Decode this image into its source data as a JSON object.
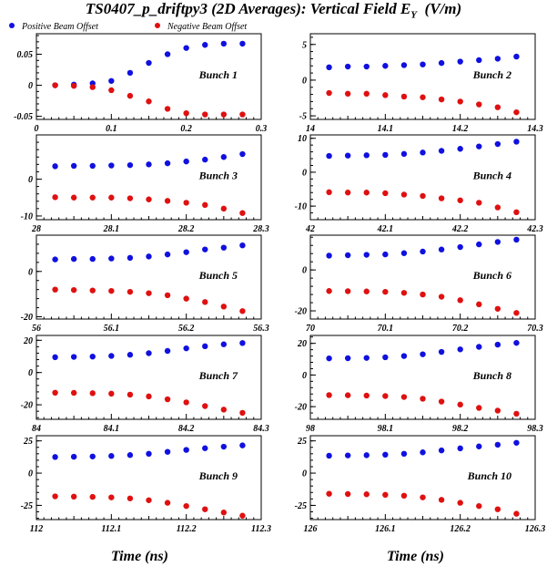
{
  "figure": {
    "title_main": "TS0407_p_driftpy3 (2D Averages): Vertical Field E",
    "title_sub": "Y",
    "title_unit": "(V/m)",
    "x_axis_title": "Time (ns)",
    "legend": [
      {
        "label": "Positive Beam Offset",
        "color": "#1010e0"
      },
      {
        "label": "Negative Beam Offset",
        "color": "#e01010"
      }
    ]
  },
  "chart_data": [
    {
      "type": "scatter",
      "annotation": "Bunch 1",
      "xlim": [
        0,
        0.3
      ],
      "ylim": [
        -0.055,
        0.083
      ],
      "xticks": [
        "0",
        "0.1",
        "0.2",
        "0.3"
      ],
      "yticks": [
        "-0.05",
        "0",
        "0.05"
      ],
      "x": [
        0.025,
        0.05,
        0.075,
        0.1,
        0.125,
        0.15,
        0.175,
        0.2,
        0.225,
        0.25,
        0.275
      ],
      "series": [
        {
          "name": "Positive Beam Offset",
          "values": [
            0.0,
            0.001,
            0.003,
            0.007,
            0.02,
            0.036,
            0.05,
            0.06,
            0.065,
            0.067,
            0.067
          ]
        },
        {
          "name": "Negative Beam Offset",
          "values": [
            0.0,
            -0.001,
            -0.003,
            -0.008,
            -0.017,
            -0.026,
            -0.038,
            -0.045,
            -0.047,
            -0.047,
            -0.047
          ]
        }
      ]
    },
    {
      "type": "scatter",
      "annotation": "Bunch 2",
      "xlim": [
        14,
        14.3
      ],
      "ylim": [
        -5.5,
        6.5
      ],
      "xticks": [
        "14",
        "14.1",
        "14.2",
        "14.3"
      ],
      "yticks": [
        "-5",
        "0",
        "5"
      ],
      "x": [
        14.025,
        14.05,
        14.075,
        14.1,
        14.125,
        14.15,
        14.175,
        14.2,
        14.225,
        14.25,
        14.275
      ],
      "series": [
        {
          "name": "Positive Beam Offset",
          "values": [
            1.8,
            1.9,
            1.9,
            2.0,
            2.1,
            2.2,
            2.4,
            2.6,
            2.8,
            3.0,
            3.3
          ]
        },
        {
          "name": "Negative Beam Offset",
          "values": [
            -1.8,
            -1.9,
            -1.9,
            -2.1,
            -2.3,
            -2.4,
            -2.7,
            -3.0,
            -3.4,
            -3.8,
            -4.5
          ]
        }
      ]
    },
    {
      "type": "scatter",
      "annotation": "Bunch 3",
      "xlim": [
        28,
        28.3
      ],
      "ylim": [
        -11,
        12
      ],
      "xticks": [
        "28",
        "28.1",
        "28.2",
        "28.3"
      ],
      "yticks": [
        "-10",
        "0"
      ],
      "x": [
        28.025,
        28.05,
        28.075,
        28.1,
        28.125,
        28.15,
        28.175,
        28.2,
        28.225,
        28.25,
        28.275
      ],
      "series": [
        {
          "name": "Positive Beam Offset",
          "values": [
            3.5,
            3.6,
            3.6,
            3.7,
            3.8,
            4.0,
            4.3,
            4.8,
            5.3,
            6.0,
            6.8
          ]
        },
        {
          "name": "Negative Beam Offset",
          "values": [
            -4.9,
            -5.0,
            -5.0,
            -5.0,
            -5.2,
            -5.5,
            -5.9,
            -6.4,
            -7.0,
            -8.0,
            -9.2
          ]
        }
      ]
    },
    {
      "type": "scatter",
      "annotation": "Bunch 4",
      "xlim": [
        42,
        42.3
      ],
      "ylim": [
        -14,
        11
      ],
      "xticks": [
        "42",
        "42.1",
        "42.2",
        "42.3"
      ],
      "yticks": [
        "-10",
        "0",
        "10"
      ],
      "x": [
        42.025,
        42.05,
        42.075,
        42.1,
        42.125,
        42.15,
        42.175,
        42.2,
        42.225,
        42.25,
        42.275
      ],
      "series": [
        {
          "name": "Positive Beam Offset",
          "values": [
            4.8,
            4.9,
            5.0,
            5.1,
            5.4,
            5.8,
            6.3,
            6.9,
            7.6,
            8.3,
            9.0
          ]
        },
        {
          "name": "Negative Beam Offset",
          "values": [
            -5.9,
            -6.0,
            -6.0,
            -6.2,
            -6.6,
            -7.0,
            -7.7,
            -8.3,
            -9.0,
            -10.4,
            -11.8
          ]
        }
      ]
    },
    {
      "type": "scatter",
      "annotation": "Bunch 5",
      "xlim": [
        56,
        56.3
      ],
      "ylim": [
        -21,
        16
      ],
      "xticks": [
        "56",
        "56.1",
        "56.2",
        "56.3"
      ],
      "yticks": [
        "-20",
        "0"
      ],
      "x": [
        56.025,
        56.05,
        56.075,
        56.1,
        56.125,
        56.15,
        56.175,
        56.2,
        56.225,
        56.25,
        56.275
      ],
      "series": [
        {
          "name": "Positive Beam Offset",
          "values": [
            5.3,
            5.5,
            5.5,
            5.7,
            6.0,
            6.6,
            7.5,
            8.5,
            9.7,
            10.5,
            11.5
          ]
        },
        {
          "name": "Negative Beam Offset",
          "values": [
            -8.0,
            -8.2,
            -8.4,
            -8.6,
            -9.0,
            -9.6,
            -10.5,
            -12.0,
            -13.5,
            -15.5,
            -17.5
          ]
        }
      ]
    },
    {
      "type": "scatter",
      "annotation": "Bunch 6",
      "xlim": [
        70,
        70.3
      ],
      "ylim": [
        -24,
        17
      ],
      "xticks": [
        "70",
        "70.1",
        "70.2",
        "70.3"
      ],
      "yticks": [
        "-20",
        "0"
      ],
      "x": [
        70.025,
        70.05,
        70.075,
        70.1,
        70.125,
        70.15,
        70.175,
        70.2,
        70.225,
        70.25,
        70.275
      ],
      "series": [
        {
          "name": "Positive Beam Offset",
          "values": [
            7.0,
            7.2,
            7.4,
            7.6,
            8.2,
            9.0,
            10.0,
            11.2,
            12.5,
            13.7,
            14.8
          ]
        },
        {
          "name": "Negative Beam Offset",
          "values": [
            -10.3,
            -10.4,
            -10.5,
            -10.7,
            -11.2,
            -12.0,
            -13.1,
            -14.8,
            -16.8,
            -19.0,
            -21.0
          ]
        }
      ]
    },
    {
      "type": "scatter",
      "annotation": "Bunch 7",
      "xlim": [
        84,
        84.3
      ],
      "ylim": [
        -29,
        23
      ],
      "xticks": [
        "84",
        "84.1",
        "84.2",
        "84.3"
      ],
      "yticks": [
        "-20",
        "0",
        "20"
      ],
      "x": [
        84.025,
        84.05,
        84.075,
        84.1,
        84.125,
        84.15,
        84.175,
        84.2,
        84.225,
        84.25,
        84.275
      ],
      "series": [
        {
          "name": "Positive Beam Offset",
          "values": [
            9.5,
            9.7,
            9.9,
            10.3,
            11.0,
            12.0,
            13.4,
            15.0,
            16.3,
            17.5,
            18.3
          ]
        },
        {
          "name": "Negative Beam Offset",
          "values": [
            -12.5,
            -12.6,
            -12.8,
            -13.1,
            -13.7,
            -14.8,
            -16.6,
            -18.5,
            -20.8,
            -23.0,
            -25.0
          ]
        }
      ]
    },
    {
      "type": "scatter",
      "annotation": "Bunch 8",
      "xlim": [
        98,
        98.3
      ],
      "ylim": [
        -28,
        25
      ],
      "xticks": [
        "98",
        "98.1",
        "98.2",
        "98.3"
      ],
      "yticks": [
        "-20",
        "0",
        "20"
      ],
      "x": [
        98.025,
        98.05,
        98.075,
        98.1,
        98.125,
        98.15,
        98.175,
        98.2,
        98.225,
        98.25,
        98.275
      ],
      "series": [
        {
          "name": "Positive Beam Offset",
          "values": [
            10.5,
            10.6,
            10.8,
            11.2,
            12.0,
            13.1,
            14.6,
            16.2,
            17.8,
            19.2,
            20.3
          ]
        },
        {
          "name": "Negative Beam Offset",
          "values": [
            -12.7,
            -12.8,
            -13.0,
            -13.3,
            -13.9,
            -15.0,
            -16.8,
            -18.7,
            -20.8,
            -22.5,
            -24.5
          ]
        }
      ]
    },
    {
      "type": "scatter",
      "annotation": "Bunch 9",
      "xlim": [
        112,
        112.3
      ],
      "ylim": [
        -36,
        29
      ],
      "xticks": [
        "112",
        "112.1",
        "112.2",
        "112.3"
      ],
      "yticks": [
        "-25",
        "0",
        "25"
      ],
      "x": [
        112.025,
        112.05,
        112.075,
        112.1,
        112.125,
        112.15,
        112.175,
        112.2,
        112.225,
        112.25,
        112.275
      ],
      "series": [
        {
          "name": "Positive Beam Offset",
          "values": [
            12.5,
            12.7,
            12.9,
            13.3,
            14.0,
            15.0,
            16.5,
            18.0,
            19.3,
            20.5,
            21.5
          ]
        },
        {
          "name": "Negative Beam Offset",
          "values": [
            -18.0,
            -18.2,
            -18.4,
            -18.8,
            -19.6,
            -21.0,
            -23.0,
            -25.5,
            -28.0,
            -30.5,
            -33.0
          ]
        }
      ]
    },
    {
      "type": "scatter",
      "annotation": "Bunch 10",
      "xlim": [
        126,
        126.3
      ],
      "ylim": [
        -36,
        29
      ],
      "xticks": [
        "126",
        "126.1",
        "126.2",
        "126.3"
      ],
      "yticks": [
        "-25",
        "0",
        "25"
      ],
      "x": [
        126.025,
        126.05,
        126.075,
        126.1,
        126.125,
        126.15,
        126.175,
        126.2,
        126.225,
        126.25,
        126.275
      ],
      "series": [
        {
          "name": "Positive Beam Offset",
          "values": [
            13.5,
            13.7,
            13.9,
            14.3,
            15.0,
            16.1,
            17.6,
            19.2,
            20.7,
            22.0,
            23.5
          ]
        },
        {
          "name": "Negative Beam Offset",
          "values": [
            -16.0,
            -16.2,
            -16.4,
            -16.8,
            -17.5,
            -18.8,
            -20.7,
            -23.0,
            -25.5,
            -28.0,
            -31.5
          ]
        }
      ]
    }
  ]
}
